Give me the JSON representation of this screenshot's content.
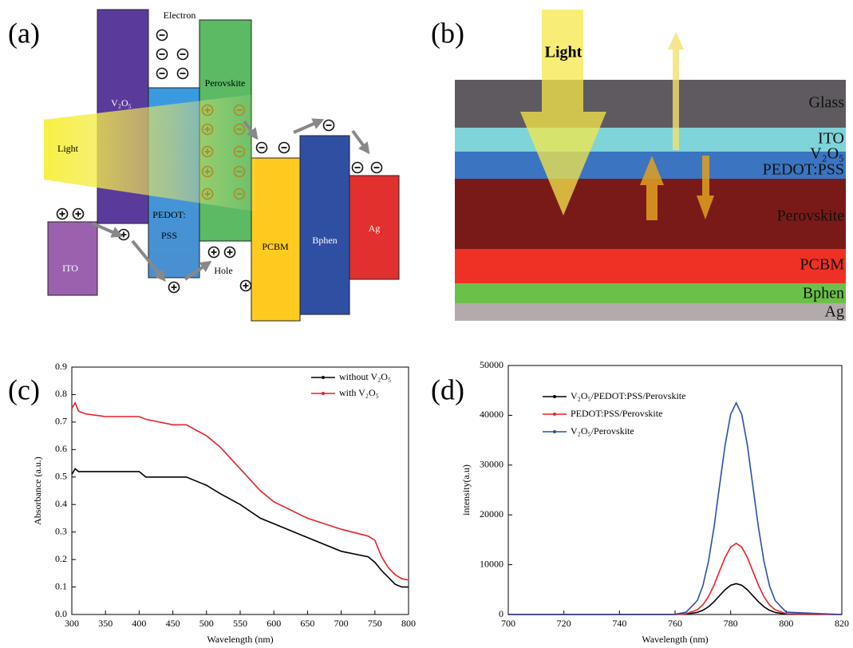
{
  "panel_labels": [
    "(a)",
    "(b)",
    "(c)",
    "(d)"
  ],
  "diagram_a": {
    "electron_label": "Electron",
    "hole_label": "Hole",
    "light_label": "Light",
    "v2o5_label": "V₂O₅",
    "pedot_label": [
      "PEDOT:",
      "PSS"
    ],
    "perovskite_label": "Perovskite",
    "ito_label": "ITO",
    "pcbm_label": "PCBM",
    "bphen_label": "Bphen",
    "ag_label": "Ag"
  },
  "diagram_b": {
    "light_label": "Light",
    "layers": [
      "Glass",
      "ITO",
      "V₂O₅",
      "PEDOT:PSS",
      "Perovskite",
      "PCBM",
      "Bphen",
      "Ag"
    ]
  },
  "chart_data": [
    {
      "type": "line",
      "x_label": "Wavelength (nm)",
      "y_label": "Absorbance (a.u.)",
      "x": [
        300,
        305,
        310,
        320,
        350,
        400,
        410,
        450,
        470,
        500,
        520,
        550,
        580,
        600,
        650,
        700,
        740,
        750,
        760,
        770,
        780,
        790,
        800
      ],
      "series": [
        {
          "name": "without V₂O₅",
          "color": "#000000",
          "values": [
            0.51,
            0.53,
            0.52,
            0.52,
            0.52,
            0.52,
            0.5,
            0.5,
            0.5,
            0.47,
            0.44,
            0.4,
            0.35,
            0.33,
            0.28,
            0.23,
            0.21,
            0.19,
            0.16,
            0.135,
            0.11,
            0.1,
            0.1
          ]
        },
        {
          "name": "with V₂O₅",
          "color": "#e8202a",
          "values": [
            0.75,
            0.77,
            0.74,
            0.73,
            0.72,
            0.72,
            0.71,
            0.69,
            0.69,
            0.65,
            0.61,
            0.53,
            0.45,
            0.41,
            0.35,
            0.31,
            0.285,
            0.27,
            0.21,
            0.17,
            0.145,
            0.13,
            0.125
          ]
        }
      ],
      "xlim": [
        300,
        800
      ],
      "xticks": [
        300,
        350,
        400,
        450,
        500,
        550,
        600,
        650,
        700,
        750,
        800
      ],
      "ylim": [
        0,
        0.9
      ],
      "yticks": [
        {
          "value": 0,
          "label": "0.0"
        },
        0.1,
        0.2,
        0.3,
        0.4,
        0.5,
        0.6,
        0.7,
        0.8,
        0.9
      ]
    },
    {
      "type": "line",
      "x_label": "Wavelength (nm)",
      "y_label": "intensity(a.u)",
      "x": [
        700,
        720,
        740,
        760,
        764,
        768,
        770,
        772,
        774,
        776,
        778,
        780,
        782,
        784,
        786,
        788,
        790,
        792,
        794,
        796,
        800,
        820
      ],
      "series": [
        {
          "name": "V₂O₅/PEDOT:PSS/Perovskite",
          "color": "#000000",
          "values": [
            0,
            0,
            0,
            10,
            70,
            410,
            840,
            1540,
            2550,
            3760,
            4970,
            5870,
            6200,
            5870,
            4970,
            3760,
            2550,
            1540,
            840,
            410,
            70,
            0
          ]
        },
        {
          "name": "PEDOT:PSS/Perovskite",
          "color": "#e8202a",
          "values": [
            0,
            0,
            0,
            20,
            160,
            940,
            1930,
            3560,
            5880,
            8680,
            11450,
            13530,
            14300,
            13530,
            11450,
            8680,
            5880,
            3560,
            1930,
            940,
            160,
            0
          ]
        },
        {
          "name": "V₂O₅/Perovskite",
          "color": "#2a4fa8",
          "values": [
            0,
            0,
            0,
            50,
            470,
            2800,
            5740,
            10600,
            17500,
            25800,
            34000,
            40200,
            42500,
            40200,
            34000,
            25800,
            17500,
            10600,
            5740,
            2800,
            470,
            0
          ]
        }
      ],
      "xlim": [
        700,
        820
      ],
      "xticks": [
        700,
        720,
        740,
        760,
        780,
        800,
        820
      ],
      "ylim": [
        0,
        50000
      ],
      "yticks": [
        0,
        10000,
        20000,
        30000,
        40000,
        50000
      ]
    }
  ]
}
